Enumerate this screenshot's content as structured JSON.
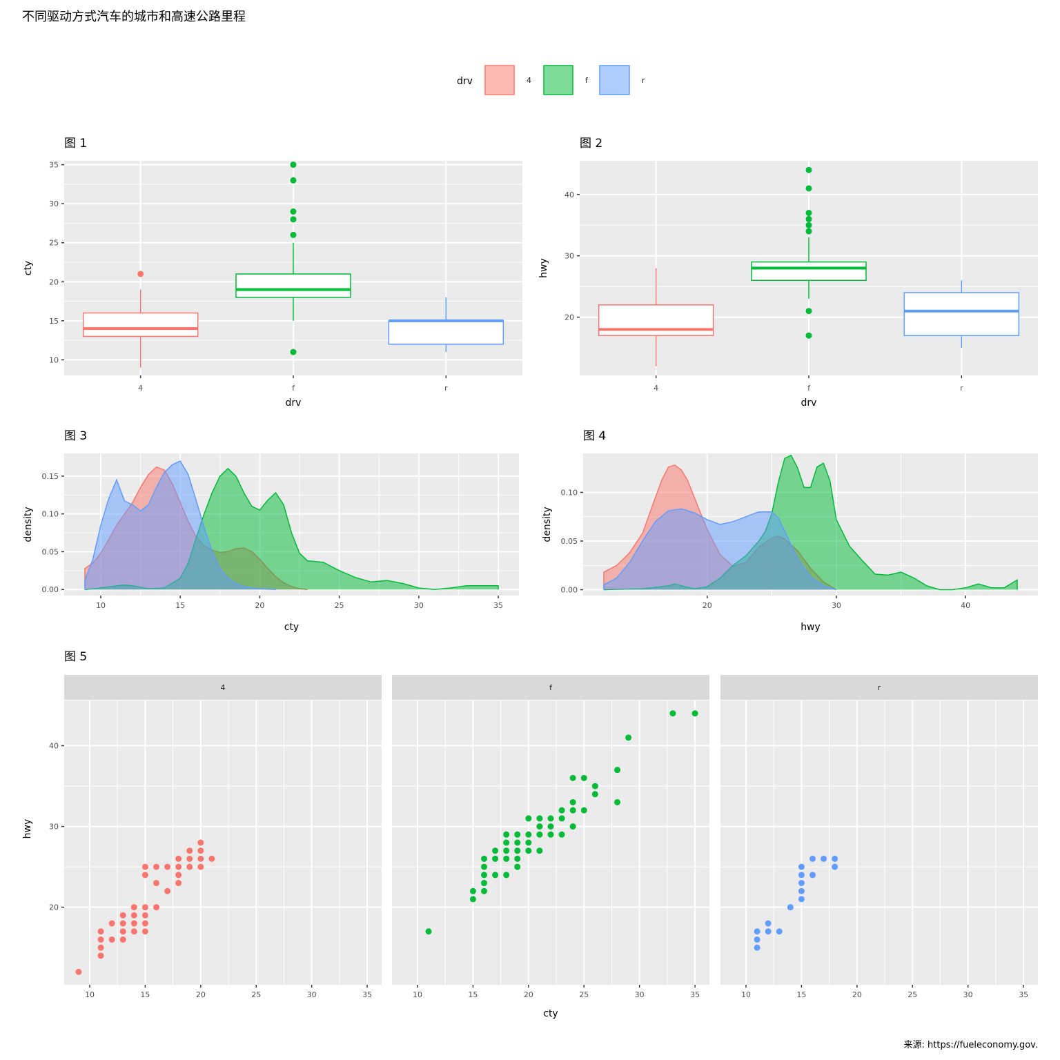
{
  "title": "不同驱动方式汽车的城市和高速公路里程",
  "caption": "来源: https://fueleconomy.gov.",
  "legend": {
    "title": "drv",
    "keys": [
      "4",
      "f",
      "r"
    ]
  },
  "colors": {
    "4": "#F8766D",
    "f": "#00BA38",
    "r": "#619CFF"
  },
  "chart_data": [
    {
      "panel": "图 1",
      "type": "boxplot",
      "categories": [
        "4",
        "f",
        "r"
      ],
      "xlabel": "drv",
      "ylabel": "cty",
      "ylim": [
        8,
        35.5
      ],
      "yticks": [
        10,
        15,
        20,
        25,
        30,
        35
      ],
      "boxes": [
        {
          "group": "4",
          "min": 9,
          "q1": 13,
          "median": 14,
          "q3": 16,
          "max": 19,
          "outliers": [
            21
          ]
        },
        {
          "group": "f",
          "min": 15,
          "q1": 18,
          "median": 19,
          "q3": 21,
          "max": 25,
          "outliers": [
            11,
            26,
            28,
            29,
            33,
            35
          ]
        },
        {
          "group": "r",
          "min": 11,
          "q1": 12,
          "median": 15,
          "q3": 15,
          "max": 18,
          "outliers": []
        }
      ]
    },
    {
      "panel": "图 2",
      "type": "boxplot",
      "categories": [
        "4",
        "f",
        "r"
      ],
      "xlabel": "drv",
      "ylabel": "hwy",
      "ylim": [
        10.5,
        45.5
      ],
      "yticks": [
        20,
        30,
        40
      ],
      "boxes": [
        {
          "group": "4",
          "min": 12,
          "q1": 17,
          "median": 18,
          "q3": 22,
          "max": 28,
          "outliers": []
        },
        {
          "group": "f",
          "min": 23,
          "q1": 26,
          "median": 28,
          "q3": 29,
          "max": 33,
          "outliers": [
            17,
            21,
            34,
            35,
            36,
            37,
            41,
            44
          ]
        },
        {
          "group": "r",
          "min": 15,
          "q1": 17,
          "median": 21,
          "q3": 24,
          "max": 26,
          "outliers": []
        }
      ]
    },
    {
      "panel": "图 3",
      "type": "area",
      "xlabel": "cty",
      "ylabel": "density",
      "xlim": [
        7.7,
        36.3
      ],
      "ylim": [
        -0.008,
        0.18
      ],
      "xticks": [
        10,
        15,
        20,
        25,
        30,
        35
      ],
      "yticks": [
        0.0,
        0.05,
        0.1,
        0.15
      ],
      "ytick_labels": [
        "0.00",
        "0.05",
        "0.10",
        "0.15"
      ],
      "series": [
        {
          "name": "4",
          "x": [
            9,
            9.5,
            10,
            10.5,
            11,
            11.5,
            12,
            12.5,
            13,
            13.5,
            14,
            14.5,
            15,
            15.5,
            16,
            16.5,
            17,
            17.5,
            18,
            18.5,
            19,
            19.5,
            20,
            20.5,
            21,
            21.5,
            22,
            22.5,
            23
          ],
          "y": [
            0.028,
            0.035,
            0.048,
            0.066,
            0.085,
            0.1,
            0.115,
            0.135,
            0.152,
            0.162,
            0.158,
            0.14,
            0.115,
            0.09,
            0.07,
            0.058,
            0.052,
            0.049,
            0.05,
            0.054,
            0.055,
            0.05,
            0.04,
            0.028,
            0.017,
            0.009,
            0.004,
            0.001,
            0.0
          ]
        },
        {
          "name": "f",
          "x": [
            9,
            10,
            11,
            11.5,
            12,
            12.5,
            13,
            14,
            15,
            15.5,
            16,
            16.5,
            17,
            17.5,
            18,
            18.5,
            19,
            19.5,
            20,
            20.5,
            21,
            21.5,
            22,
            22.5,
            23,
            24,
            25,
            26,
            27,
            28,
            29,
            30,
            31,
            32,
            33,
            34,
            35
          ],
          "y": [
            0.0,
            0.002,
            0.005,
            0.006,
            0.005,
            0.003,
            0.001,
            0.002,
            0.015,
            0.035,
            0.068,
            0.1,
            0.128,
            0.15,
            0.16,
            0.15,
            0.128,
            0.11,
            0.105,
            0.118,
            0.128,
            0.112,
            0.075,
            0.048,
            0.038,
            0.036,
            0.025,
            0.016,
            0.01,
            0.012,
            0.008,
            0.002,
            0.0,
            0.002,
            0.005,
            0.005,
            0.005
          ]
        },
        {
          "name": "r",
          "x": [
            9,
            9.5,
            10,
            10.5,
            11,
            11.5,
            12,
            12.5,
            13,
            13.5,
            14,
            14.5,
            15,
            15.5,
            16,
            16.5,
            17,
            17.5,
            18,
            18.5,
            19,
            19.5,
            20,
            21
          ],
          "y": [
            0.012,
            0.04,
            0.085,
            0.12,
            0.145,
            0.117,
            0.112,
            0.104,
            0.112,
            0.135,
            0.155,
            0.165,
            0.17,
            0.152,
            0.118,
            0.082,
            0.05,
            0.028,
            0.015,
            0.008,
            0.004,
            0.002,
            0.001,
            0.0
          ]
        }
      ]
    },
    {
      "panel": "图 4",
      "type": "area",
      "xlabel": "hwy",
      "ylabel": "density",
      "xlim": [
        10.4,
        45.6
      ],
      "ylim": [
        -0.006,
        0.14
      ],
      "xticks": [
        20,
        30,
        40
      ],
      "yticks": [
        0.0,
        0.05,
        0.1
      ],
      "ytick_labels": [
        "0.00",
        "0.05",
        "0.10"
      ],
      "series": [
        {
          "name": "4",
          "x": [
            12,
            13,
            14,
            15,
            16,
            16.5,
            17,
            17.5,
            18,
            18.5,
            19,
            20,
            21,
            22,
            23,
            24,
            25,
            25.5,
            26,
            27,
            28,
            29,
            30
          ],
          "y": [
            0.018,
            0.025,
            0.038,
            0.058,
            0.095,
            0.113,
            0.126,
            0.128,
            0.123,
            0.112,
            0.095,
            0.062,
            0.036,
            0.024,
            0.028,
            0.044,
            0.053,
            0.055,
            0.052,
            0.04,
            0.022,
            0.008,
            0.0
          ]
        },
        {
          "name": "f",
          "x": [
            12,
            15,
            17,
            17.5,
            18,
            19,
            20,
            21,
            22,
            23,
            24,
            24.5,
            25,
            25.5,
            26,
            26.5,
            27,
            27.5,
            28,
            28.5,
            29,
            29.5,
            30,
            31,
            32,
            33,
            34,
            35,
            36,
            37,
            38,
            39,
            40,
            41,
            42,
            43,
            44
          ],
          "y": [
            0.0,
            0.001,
            0.004,
            0.006,
            0.004,
            0.001,
            0.003,
            0.012,
            0.025,
            0.035,
            0.05,
            0.06,
            0.078,
            0.11,
            0.135,
            0.138,
            0.125,
            0.105,
            0.105,
            0.126,
            0.13,
            0.112,
            0.072,
            0.045,
            0.03,
            0.016,
            0.015,
            0.018,
            0.012,
            0.004,
            0.0,
            0.0,
            0.002,
            0.006,
            0.002,
            0.002,
            0.01
          ]
        },
        {
          "name": "r",
          "x": [
            12,
            13,
            14,
            15,
            16,
            17,
            18,
            19,
            20,
            21,
            22,
            23,
            24,
            25,
            25.5,
            26,
            27,
            28,
            29,
            30
          ],
          "y": [
            0.005,
            0.012,
            0.028,
            0.05,
            0.07,
            0.081,
            0.083,
            0.079,
            0.072,
            0.067,
            0.07,
            0.075,
            0.08,
            0.08,
            0.074,
            0.06,
            0.032,
            0.013,
            0.004,
            0.0
          ]
        }
      ]
    },
    {
      "panel": "图 5",
      "type": "scatter",
      "facets": [
        "4",
        "f",
        "r"
      ],
      "xlabel": "cty",
      "ylabel": "hwy",
      "xlim": [
        7.7,
        36.3
      ],
      "ylim": [
        10.4,
        45.6
      ],
      "xticks": [
        10,
        15,
        20,
        25,
        30,
        35
      ],
      "yticks": [
        20,
        30,
        40
      ],
      "series": [
        {
          "name": "4",
          "points": [
            [
              9,
              12
            ],
            [
              11,
              14
            ],
            [
              11,
              15
            ],
            [
              11,
              16
            ],
            [
              11,
              17
            ],
            [
              12,
              16
            ],
            [
              12,
              18
            ],
            [
              13,
              16
            ],
            [
              13,
              17
            ],
            [
              13,
              18
            ],
            [
              13,
              19
            ],
            [
              14,
              17
            ],
            [
              14,
              18
            ],
            [
              14,
              19
            ],
            [
              14,
              20
            ],
            [
              15,
              17
            ],
            [
              15,
              18
            ],
            [
              15,
              19
            ],
            [
              15,
              20
            ],
            [
              15,
              24
            ],
            [
              15,
              25
            ],
            [
              16,
              20
            ],
            [
              16,
              23
            ],
            [
              16,
              25
            ],
            [
              17,
              22
            ],
            [
              17,
              25
            ],
            [
              18,
              23
            ],
            [
              18,
              24
            ],
            [
              18,
              25
            ],
            [
              18,
              26
            ],
            [
              19,
              25
            ],
            [
              19,
              26
            ],
            [
              19,
              27
            ],
            [
              20,
              25
            ],
            [
              20,
              26
            ],
            [
              20,
              27
            ],
            [
              20,
              28
            ],
            [
              21,
              26
            ]
          ]
        },
        {
          "name": "f",
          "points": [
            [
              11,
              17
            ],
            [
              15,
              21
            ],
            [
              15,
              22
            ],
            [
              16,
              22
            ],
            [
              16,
              23
            ],
            [
              16,
              24
            ],
            [
              16,
              25
            ],
            [
              16,
              26
            ],
            [
              17,
              24
            ],
            [
              17,
              26
            ],
            [
              17,
              27
            ],
            [
              18,
              24
            ],
            [
              18,
              26
            ],
            [
              18,
              27
            ],
            [
              18,
              28
            ],
            [
              18,
              29
            ],
            [
              19,
              25
            ],
            [
              19,
              26
            ],
            [
              19,
              27
            ],
            [
              19,
              28
            ],
            [
              19,
              29
            ],
            [
              20,
              27
            ],
            [
              20,
              28
            ],
            [
              20,
              29
            ],
            [
              20,
              31
            ],
            [
              21,
              27
            ],
            [
              21,
              29
            ],
            [
              21,
              30
            ],
            [
              21,
              31
            ],
            [
              22,
              29
            ],
            [
              22,
              30
            ],
            [
              22,
              31
            ],
            [
              23,
              29
            ],
            [
              23,
              31
            ],
            [
              23,
              32
            ],
            [
              24,
              30
            ],
            [
              24,
              32
            ],
            [
              24,
              33
            ],
            [
              24,
              36
            ],
            [
              25,
              32
            ],
            [
              25,
              36
            ],
            [
              26,
              34
            ],
            [
              26,
              35
            ],
            [
              28,
              33
            ],
            [
              28,
              37
            ],
            [
              29,
              41
            ],
            [
              33,
              44
            ],
            [
              35,
              44
            ]
          ]
        },
        {
          "name": "r",
          "points": [
            [
              11,
              15
            ],
            [
              11,
              16
            ],
            [
              11,
              17
            ],
            [
              12,
              17
            ],
            [
              12,
              18
            ],
            [
              13,
              17
            ],
            [
              14,
              20
            ],
            [
              15,
              21
            ],
            [
              15,
              22
            ],
            [
              15,
              23
            ],
            [
              15,
              24
            ],
            [
              15,
              25
            ],
            [
              16,
              24
            ],
            [
              16,
              26
            ],
            [
              17,
              26
            ],
            [
              18,
              25
            ],
            [
              18,
              26
            ]
          ]
        }
      ]
    }
  ]
}
